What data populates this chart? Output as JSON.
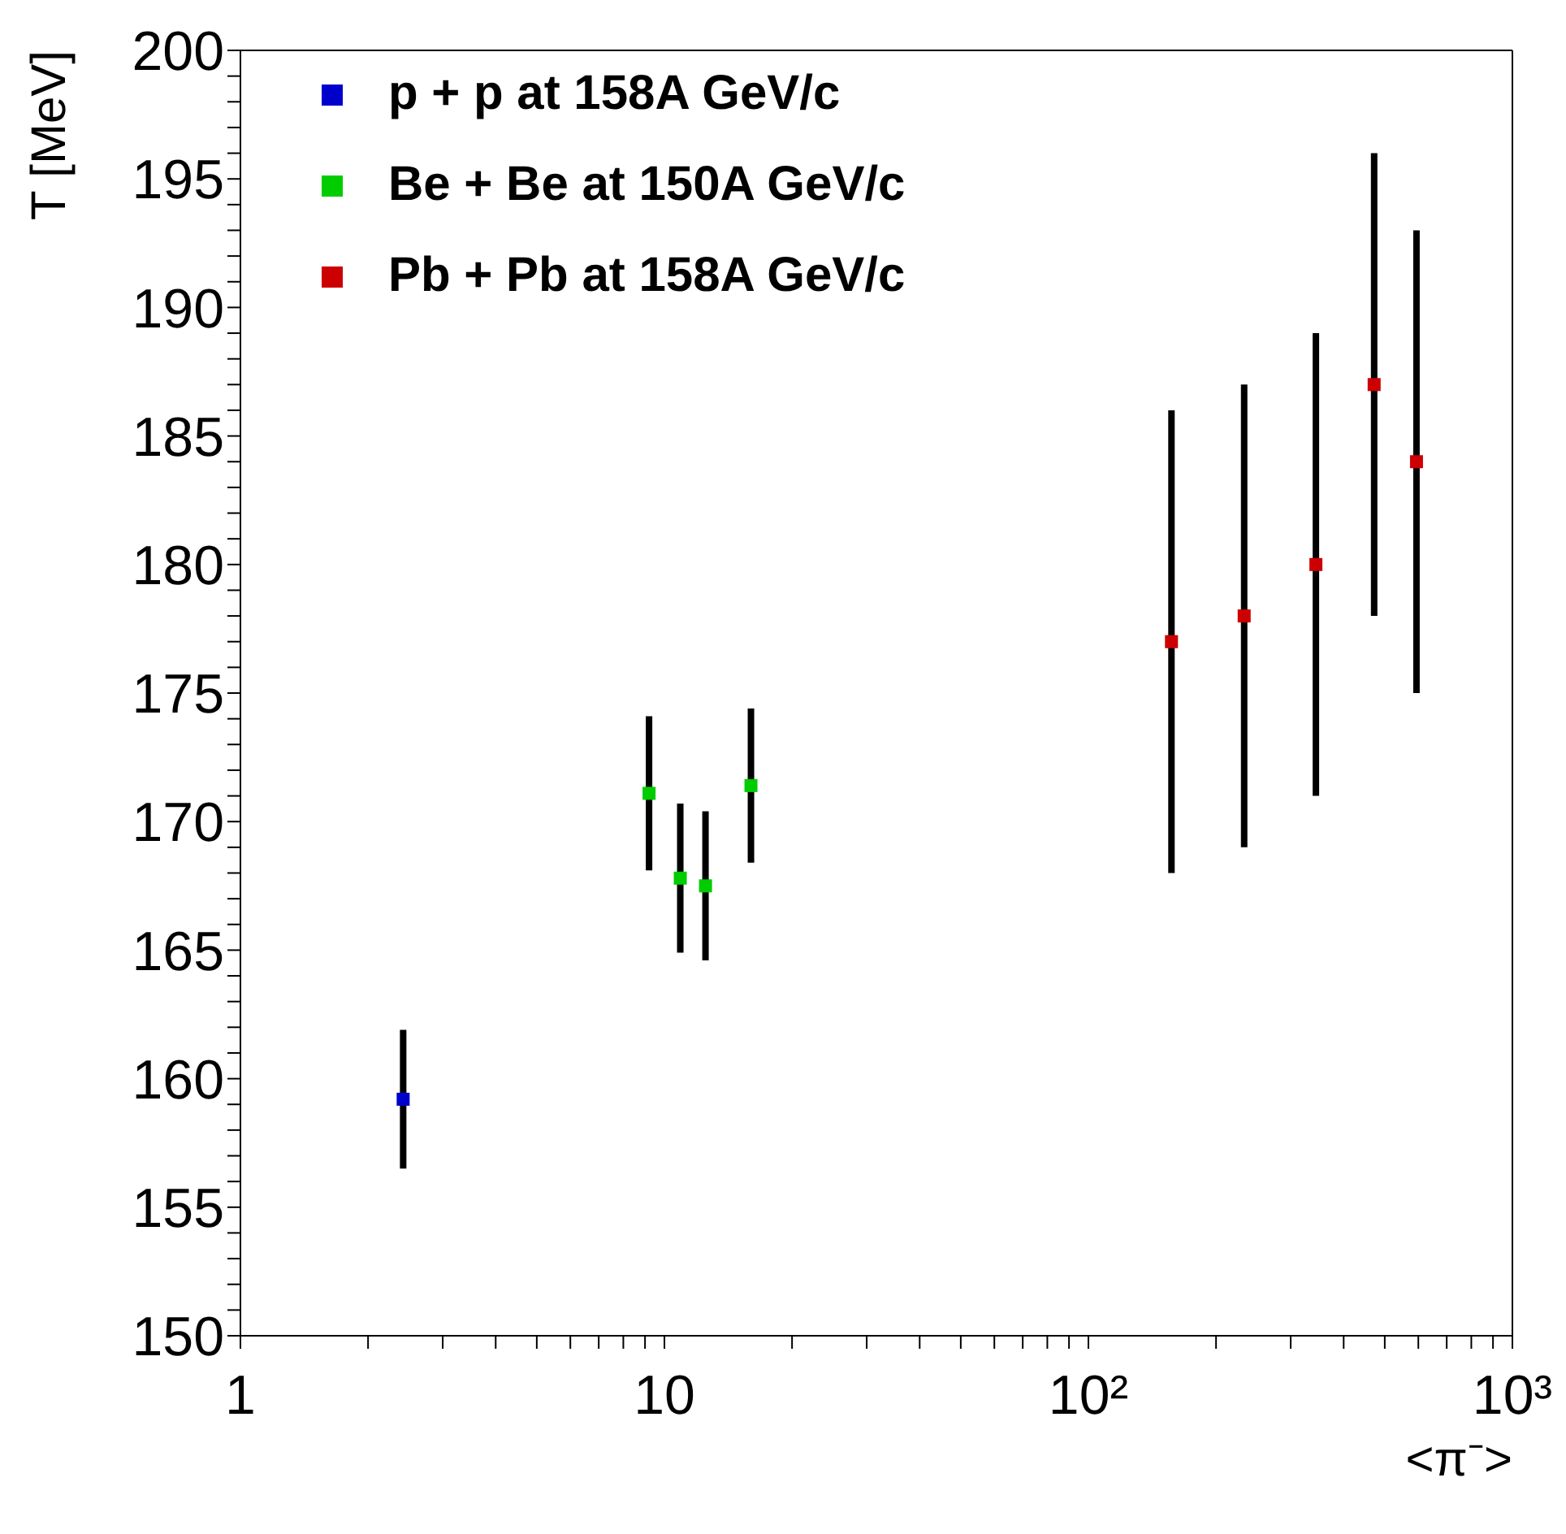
{
  "chart_data": {
    "type": "scatter",
    "xlabel": "<π⁻>",
    "ylabel": "T [MeV]",
    "log": "x",
    "marker": "square",
    "legend": "top left",
    "grid": false,
    "xlim": [
      1,
      1000
    ],
    "xticks": [
      1,
      {
        "value": 2,
        "label": null
      },
      {
        "value": 3,
        "label": null
      },
      {
        "value": 4,
        "label": null
      },
      {
        "value": 5,
        "label": null
      },
      {
        "value": 6,
        "label": null
      },
      {
        "value": 7,
        "label": null
      },
      {
        "value": 8,
        "label": null
      },
      {
        "value": 9,
        "label": null
      },
      10,
      {
        "value": 20,
        "label": null
      },
      {
        "value": 30,
        "label": null
      },
      {
        "value": 40,
        "label": null
      },
      {
        "value": 50,
        "label": null
      },
      {
        "value": 60,
        "label": null
      },
      {
        "value": 70,
        "label": null
      },
      {
        "value": 80,
        "label": null
      },
      {
        "value": 90,
        "label": null
      },
      {
        "value": 100,
        "label": "10²"
      },
      {
        "value": 200,
        "label": null
      },
      {
        "value": 300,
        "label": null
      },
      {
        "value": 400,
        "label": null
      },
      {
        "value": 500,
        "label": null
      },
      {
        "value": 600,
        "label": null
      },
      {
        "value": 700,
        "label": null
      },
      {
        "value": 800,
        "label": null
      },
      {
        "value": 900,
        "label": null
      },
      {
        "value": 1000,
        "label": "10³"
      }
    ],
    "ylim": [
      150,
      200
    ],
    "yticks": [
      150,
      {
        "value": 151,
        "label": null
      },
      {
        "value": 152,
        "label": null
      },
      {
        "value": 153,
        "label": null
      },
      {
        "value": 154,
        "label": null
      },
      155,
      {
        "value": 156,
        "label": null
      },
      {
        "value": 157,
        "label": null
      },
      {
        "value": 158,
        "label": null
      },
      {
        "value": 159,
        "label": null
      },
      160,
      {
        "value": 161,
        "label": null
      },
      {
        "value": 162,
        "label": null
      },
      {
        "value": 163,
        "label": null
      },
      {
        "value": 164,
        "label": null
      },
      165,
      {
        "value": 166,
        "label": null
      },
      {
        "value": 167,
        "label": null
      },
      {
        "value": 168,
        "label": null
      },
      {
        "value": 169,
        "label": null
      },
      170,
      {
        "value": 171,
        "label": null
      },
      {
        "value": 172,
        "label": null
      },
      {
        "value": 173,
        "label": null
      },
      {
        "value": 174,
        "label": null
      },
      175,
      {
        "value": 176,
        "label": null
      },
      {
        "value": 177,
        "label": null
      },
      {
        "value": 178,
        "label": null
      },
      {
        "value": 179,
        "label": null
      },
      180,
      {
        "value": 181,
        "label": null
      },
      {
        "value": 182,
        "label": null
      },
      {
        "value": 183,
        "label": null
      },
      {
        "value": 184,
        "label": null
      },
      185,
      {
        "value": 186,
        "label": null
      },
      {
        "value": 187,
        "label": null
      },
      {
        "value": 188,
        "label": null
      },
      {
        "value": 189,
        "label": null
      },
      190,
      {
        "value": 191,
        "label": null
      },
      {
        "value": 192,
        "label": null
      },
      {
        "value": 193,
        "label": null
      },
      {
        "value": 194,
        "label": null
      },
      195,
      {
        "value": 196,
        "label": null
      },
      {
        "value": 197,
        "label": null
      },
      {
        "value": 198,
        "label": null
      },
      {
        "value": 199,
        "label": null
      },
      200
    ],
    "series": [
      {
        "name": "p + p at 158A GeV/c",
        "color": "#0000cc",
        "x": [
          2.42
        ],
        "values": [
          159.2
        ],
        "errors": [
          2.7
        ]
      },
      {
        "name": "Be + Be at 150A GeV/c",
        "color": "#00cc00",
        "x": [
          9.2,
          10.9,
          12.5,
          16.0
        ],
        "values": [
          171.1,
          167.8,
          167.5,
          171.4
        ],
        "errors": [
          3,
          2.9,
          2.9,
          3
        ]
      },
      {
        "name": "Pb + Pb at 158A GeV/c",
        "color": "#cc0000",
        "x": [
          157,
          233,
          344,
          472,
          594
        ],
        "values": [
          177,
          178,
          180,
          187,
          184
        ],
        "errors": [
          9,
          9,
          9,
          9,
          9
        ]
      }
    ]
  }
}
